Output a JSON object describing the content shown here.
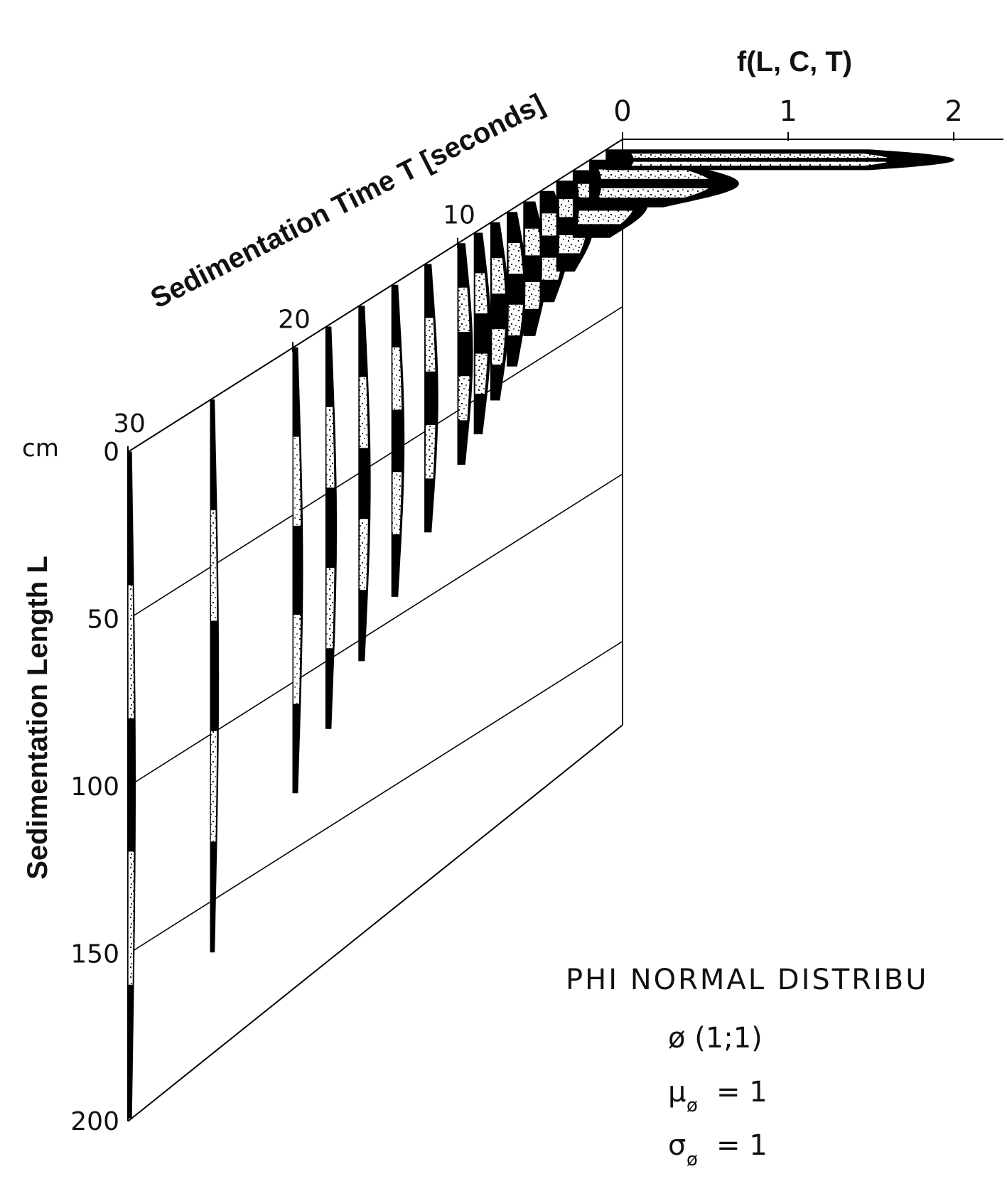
{
  "chart_data": {
    "type": "area",
    "subtype": "3d-waterfall",
    "top_axis": {
      "label": "f(L, C, T)",
      "ticks": [
        0,
        1,
        2
      ],
      "range": [
        0,
        2.3
      ]
    },
    "time_axis": {
      "label": "Sedimentation Time T [seconds]",
      "ticks": [
        10,
        20,
        30
      ],
      "range": [
        0,
        30
      ]
    },
    "length_axis": {
      "label": "Sedimentation Length L",
      "unit": "cm",
      "ticks": [
        0,
        50,
        100,
        150,
        200
      ],
      "range": [
        0,
        200
      ]
    },
    "series": [
      {
        "t": 1,
        "peak": 2.1,
        "bands": [
          0,
          6
        ]
      },
      {
        "t": 2,
        "peak": 0.9,
        "bands": [
          0,
          14
        ]
      },
      {
        "t": 3,
        "peak": 0.45,
        "bands": [
          0,
          20
        ]
      },
      {
        "t": 4,
        "peak": 0.22,
        "bands": [
          0,
          27
        ]
      },
      {
        "t": 5,
        "peak": 0.17,
        "bands": [
          0,
          33
        ]
      },
      {
        "t": 6,
        "peak": 0.14,
        "bands": [
          0,
          40
        ]
      },
      {
        "t": 7,
        "peak": 0.12,
        "bands": [
          0,
          46
        ]
      },
      {
        "t": 8,
        "peak": 0.11,
        "bands": [
          0,
          53
        ]
      },
      {
        "t": 9,
        "peak": 0.1,
        "bands": [
          0,
          60
        ]
      },
      {
        "t": 10,
        "peak": 0.09,
        "bands": [
          0,
          66
        ]
      },
      {
        "t": 12,
        "peak": 0.08,
        "bands": [
          0,
          80
        ]
      },
      {
        "t": 14,
        "peak": 0.075,
        "bands": [
          0,
          93
        ]
      },
      {
        "t": 16,
        "peak": 0.07,
        "bands": [
          0,
          106
        ]
      },
      {
        "t": 18,
        "peak": 0.065,
        "bands": [
          0,
          120
        ]
      },
      {
        "t": 20,
        "peak": 0.06,
        "bands": [
          0,
          133
        ]
      },
      {
        "t": 25,
        "peak": 0.05,
        "bands": [
          0,
          165
        ]
      },
      {
        "t": 30,
        "peak": 0.045,
        "bands": [
          0,
          199
        ]
      }
    ]
  },
  "annotation": {
    "title": "PHI  NORMAL DISTRIBU",
    "line1": "ø (1;1)",
    "mu_symbol": "μ",
    "mu_sub": "ø",
    "mu_value": "= 1",
    "sigma_symbol": "σ",
    "sigma_sub": "ø",
    "sigma_value": "= 1"
  }
}
